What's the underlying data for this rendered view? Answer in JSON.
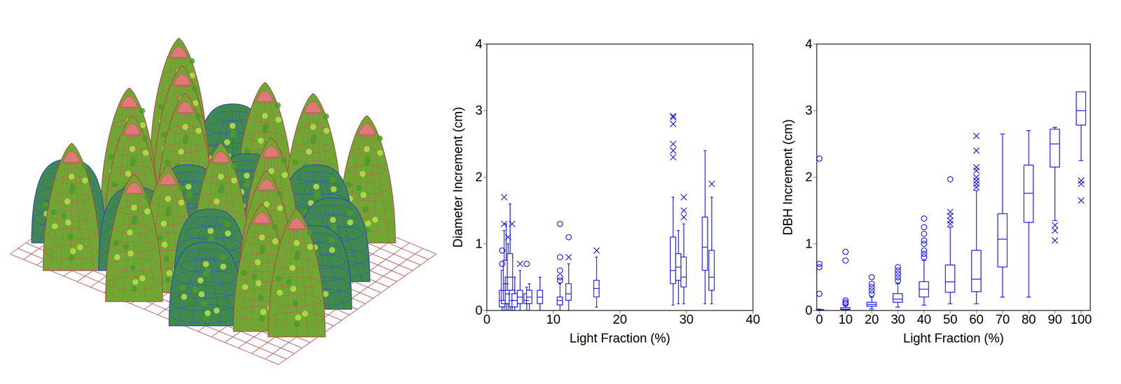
{
  "chart_data": [
    {
      "type": "box",
      "x_label": "Light Fraction (%)",
      "y_label": "Diameter Increment (cm)",
      "xlim": [
        0,
        40
      ],
      "xticks": [
        0,
        10,
        20,
        30,
        40
      ],
      "ylim": [
        0,
        4
      ],
      "yticks": [
        0,
        1,
        2,
        3,
        4
      ],
      "color": "#0000ff",
      "boxes": [
        {
          "x": 2.3,
          "whisker_low": 0,
          "q1": 0.05,
          "median": 0.15,
          "q3": 0.3,
          "whisker_high": 0.6,
          "outliers": [
            {
              "value": 0.7,
              "marker": "circle"
            },
            {
              "value": 0.9,
              "marker": "circle"
            }
          ]
        },
        {
          "x": 2.6,
          "whisker_low": 0,
          "q1": 0.1,
          "median": 0.3,
          "q3": 0.6,
          "whisker_high": 1.2,
          "outliers": [
            {
              "value": 1.3,
              "marker": "cross"
            },
            {
              "value": 1.7,
              "marker": "cross"
            }
          ]
        },
        {
          "x": 2.9,
          "whisker_low": 0,
          "q1": 0.15,
          "median": 0.4,
          "q3": 0.75,
          "whisker_high": 1.3,
          "outliers": []
        },
        {
          "x": 3.2,
          "whisker_low": 0,
          "q1": 0.1,
          "median": 0.25,
          "q3": 0.5,
          "whisker_high": 1.0,
          "outliers": [
            {
              "value": 1.1,
              "marker": "cross"
            }
          ]
        },
        {
          "x": 3.5,
          "whisker_low": 0,
          "q1": 0.3,
          "median": 0.5,
          "q3": 0.85,
          "whisker_high": 1.6,
          "outliers": []
        },
        {
          "x": 3.8,
          "whisker_low": 0,
          "q1": 0.05,
          "median": 0.15,
          "q3": 0.3,
          "whisker_high": 0.8,
          "outliers": [
            {
              "value": 1.3,
              "marker": "cross"
            }
          ]
        },
        {
          "x": 4.2,
          "whisker_low": 0,
          "q1": 0.05,
          "median": 0.15,
          "q3": 0.25,
          "whisker_high": 0.5,
          "outliers": []
        },
        {
          "x": 5.0,
          "whisker_low": 0,
          "q1": 0.1,
          "median": 0.2,
          "q3": 0.3,
          "whisker_high": 0.6,
          "outliers": [
            {
              "value": 0.7,
              "marker": "cross"
            }
          ]
        },
        {
          "x": 6.0,
          "whisker_low": 0,
          "q1": 0.1,
          "median": 0.15,
          "q3": 0.25,
          "whisker_high": 0.35,
          "outliers": [
            {
              "value": 0.7,
              "marker": "circle"
            }
          ]
        },
        {
          "x": 6.4,
          "whisker_low": 0,
          "q1": 0.1,
          "median": 0.2,
          "q3": 0.3,
          "whisker_high": 0.4,
          "outliers": []
        },
        {
          "x": 8,
          "whisker_low": 0,
          "q1": 0.1,
          "median": 0.2,
          "q3": 0.3,
          "whisker_high": 0.5,
          "outliers": []
        },
        {
          "x": 11,
          "whisker_low": 0,
          "q1": 0.08,
          "median": 0.15,
          "q3": 0.2,
          "whisker_high": 0.4,
          "outliers": [
            {
              "value": 0.45,
              "marker": "circle"
            },
            {
              "value": 0.5,
              "marker": "circle"
            },
            {
              "value": 0.6,
              "marker": "circle"
            },
            {
              "value": 0.8,
              "marker": "circle"
            },
            {
              "value": 1.3,
              "marker": "circle"
            }
          ]
        },
        {
          "x": 12.3,
          "whisker_low": 0,
          "q1": 0.15,
          "median": 0.25,
          "q3": 0.4,
          "whisker_high": 0.7,
          "outliers": [
            {
              "value": 0.8,
              "marker": "cross"
            },
            {
              "value": 1.1,
              "marker": "circle"
            }
          ]
        },
        {
          "x": 16.5,
          "whisker_low": 0.05,
          "q1": 0.2,
          "median": 0.33,
          "q3": 0.45,
          "whisker_high": 0.8,
          "outliers": [
            {
              "value": 0.9,
              "marker": "cross"
            }
          ]
        },
        {
          "x": 28,
          "whisker_low": 0.08,
          "q1": 0.4,
          "median": 0.6,
          "q3": 1.1,
          "whisker_high": 1.7,
          "outliers": [
            {
              "value": 2.3,
              "marker": "cross"
            },
            {
              "value": 2.4,
              "marker": "cross"
            },
            {
              "value": 2.5,
              "marker": "cross"
            },
            {
              "value": 2.8,
              "marker": "cross"
            },
            {
              "value": 2.9,
              "marker": "cross"
            },
            {
              "value": 2.92,
              "marker": "cross"
            }
          ]
        },
        {
          "x": 28.8,
          "whisker_low": 0.1,
          "q1": 0.45,
          "median": 0.65,
          "q3": 0.85,
          "whisker_high": 1.2,
          "outliers": []
        },
        {
          "x": 29.6,
          "whisker_low": 0.1,
          "q1": 0.35,
          "median": 0.5,
          "q3": 0.8,
          "whisker_high": 1.3,
          "outliers": [
            {
              "value": 1.4,
              "marker": "cross"
            },
            {
              "value": 1.5,
              "marker": "cross"
            },
            {
              "value": 1.7,
              "marker": "cross"
            }
          ]
        },
        {
          "x": 32.8,
          "whisker_low": 0.1,
          "q1": 0.6,
          "median": 0.95,
          "q3": 1.4,
          "whisker_high": 2.4,
          "outliers": []
        },
        {
          "x": 33.8,
          "whisker_low": 0.1,
          "q1": 0.3,
          "median": 0.5,
          "q3": 0.9,
          "whisker_high": 1.7,
          "outliers": [
            {
              "value": 1.9,
              "marker": "cross"
            }
          ]
        }
      ]
    },
    {
      "type": "box",
      "x_label": "Light Fraction (%)",
      "y_label": "DBH Increment (cm)",
      "xlim": [
        -1,
        103.5
      ],
      "xticks": [
        0,
        10,
        20,
        30,
        40,
        50,
        60,
        70,
        80,
        90,
        100
      ],
      "ylim": [
        0,
        4
      ],
      "yticks": [
        0,
        1,
        2,
        3,
        4
      ],
      "color": "#0000ff",
      "boxes": [
        {
          "x": 0,
          "whisker_low": 0,
          "q1": 0,
          "median": 0,
          "q3": 0.01,
          "whisker_high": 0.02,
          "outliers": [
            {
              "value": 0.25,
              "marker": "circle"
            },
            {
              "value": 0.65,
              "marker": "circle"
            },
            {
              "value": 0.7,
              "marker": "circle"
            },
            {
              "value": 2.28,
              "marker": "circle"
            }
          ]
        },
        {
          "x": 10,
          "whisker_low": 0,
          "q1": 0.01,
          "median": 0.02,
          "q3": 0.04,
          "whisker_high": 0.08,
          "outliers": [
            {
              "value": 0.1,
              "marker": "circle"
            },
            {
              "value": 0.12,
              "marker": "circle"
            },
            {
              "value": 0.15,
              "marker": "circle"
            },
            {
              "value": 0.75,
              "marker": "circle"
            },
            {
              "value": 0.88,
              "marker": "circle"
            }
          ]
        },
        {
          "x": 20,
          "whisker_low": 0.02,
          "q1": 0.06,
          "median": 0.09,
          "q3": 0.12,
          "whisker_high": 0.2,
          "outliers": [
            {
              "value": 0.25,
              "marker": "circle"
            },
            {
              "value": 0.3,
              "marker": "circle"
            },
            {
              "value": 0.35,
              "marker": "circle"
            },
            {
              "value": 0.4,
              "marker": "circle"
            },
            {
              "value": 0.5,
              "marker": "circle"
            }
          ]
        },
        {
          "x": 30,
          "whisker_low": 0.05,
          "q1": 0.12,
          "median": 0.17,
          "q3": 0.25,
          "whisker_high": 0.4,
          "outliers": [
            {
              "value": 0.45,
              "marker": "circle"
            },
            {
              "value": 0.5,
              "marker": "circle"
            },
            {
              "value": 0.55,
              "marker": "circle"
            },
            {
              "value": 0.6,
              "marker": "circle"
            },
            {
              "value": 0.65,
              "marker": "circle"
            }
          ]
        },
        {
          "x": 40,
          "whisker_low": 0.08,
          "q1": 0.2,
          "median": 0.32,
          "q3": 0.43,
          "whisker_high": 0.75,
          "outliers": [
            {
              "value": 0.8,
              "marker": "circle"
            },
            {
              "value": 0.85,
              "marker": "circle"
            },
            {
              "value": 0.9,
              "marker": "circle"
            },
            {
              "value": 1.0,
              "marker": "circle"
            },
            {
              "value": 1.05,
              "marker": "circle"
            },
            {
              "value": 1.15,
              "marker": "circle"
            },
            {
              "value": 1.25,
              "marker": "circle"
            },
            {
              "value": 1.38,
              "marker": "circle"
            }
          ]
        },
        {
          "x": 50,
          "whisker_low": 0.1,
          "q1": 0.27,
          "median": 0.43,
          "q3": 0.68,
          "whisker_high": 1.25,
          "outliers": [
            {
              "value": 1.3,
              "marker": "cross"
            },
            {
              "value": 1.35,
              "marker": "cross"
            },
            {
              "value": 1.42,
              "marker": "cross"
            },
            {
              "value": 1.48,
              "marker": "cross"
            },
            {
              "value": 1.97,
              "marker": "circle"
            }
          ]
        },
        {
          "x": 60,
          "whisker_low": 0.1,
          "q1": 0.28,
          "median": 0.47,
          "q3": 0.9,
          "whisker_high": 1.8,
          "outliers": [
            {
              "value": 1.85,
              "marker": "cross"
            },
            {
              "value": 1.9,
              "marker": "cross"
            },
            {
              "value": 1.95,
              "marker": "cross"
            },
            {
              "value": 2.0,
              "marker": "cross"
            },
            {
              "value": 2.1,
              "marker": "cross"
            },
            {
              "value": 2.15,
              "marker": "cross"
            },
            {
              "value": 2.4,
              "marker": "cross"
            },
            {
              "value": 2.62,
              "marker": "cross"
            }
          ]
        },
        {
          "x": 70,
          "whisker_low": 0.2,
          "q1": 0.65,
          "median": 1.07,
          "q3": 1.45,
          "whisker_high": 2.65,
          "outliers": []
        },
        {
          "x": 80,
          "whisker_low": 0.2,
          "q1": 1.32,
          "median": 1.76,
          "q3": 2.18,
          "whisker_high": 2.7,
          "outliers": []
        },
        {
          "x": 90,
          "whisker_low": 1.35,
          "q1": 2.15,
          "median": 2.5,
          "q3": 2.72,
          "whisker_high": 2.75,
          "outliers": [
            {
              "value": 1.05,
              "marker": "cross"
            },
            {
              "value": 1.2,
              "marker": "cross"
            },
            {
              "value": 1.28,
              "marker": "cross"
            }
          ]
        },
        {
          "x": 100,
          "whisker_low": 2.25,
          "q1": 2.78,
          "median": 3.0,
          "q3": 3.28,
          "whisker_high": 3.28,
          "outliers": [
            {
              "value": 1.65,
              "marker": "cross"
            },
            {
              "value": 1.9,
              "marker": "cross"
            },
            {
              "value": 1.95,
              "marker": "cross"
            }
          ]
        }
      ]
    }
  ]
}
